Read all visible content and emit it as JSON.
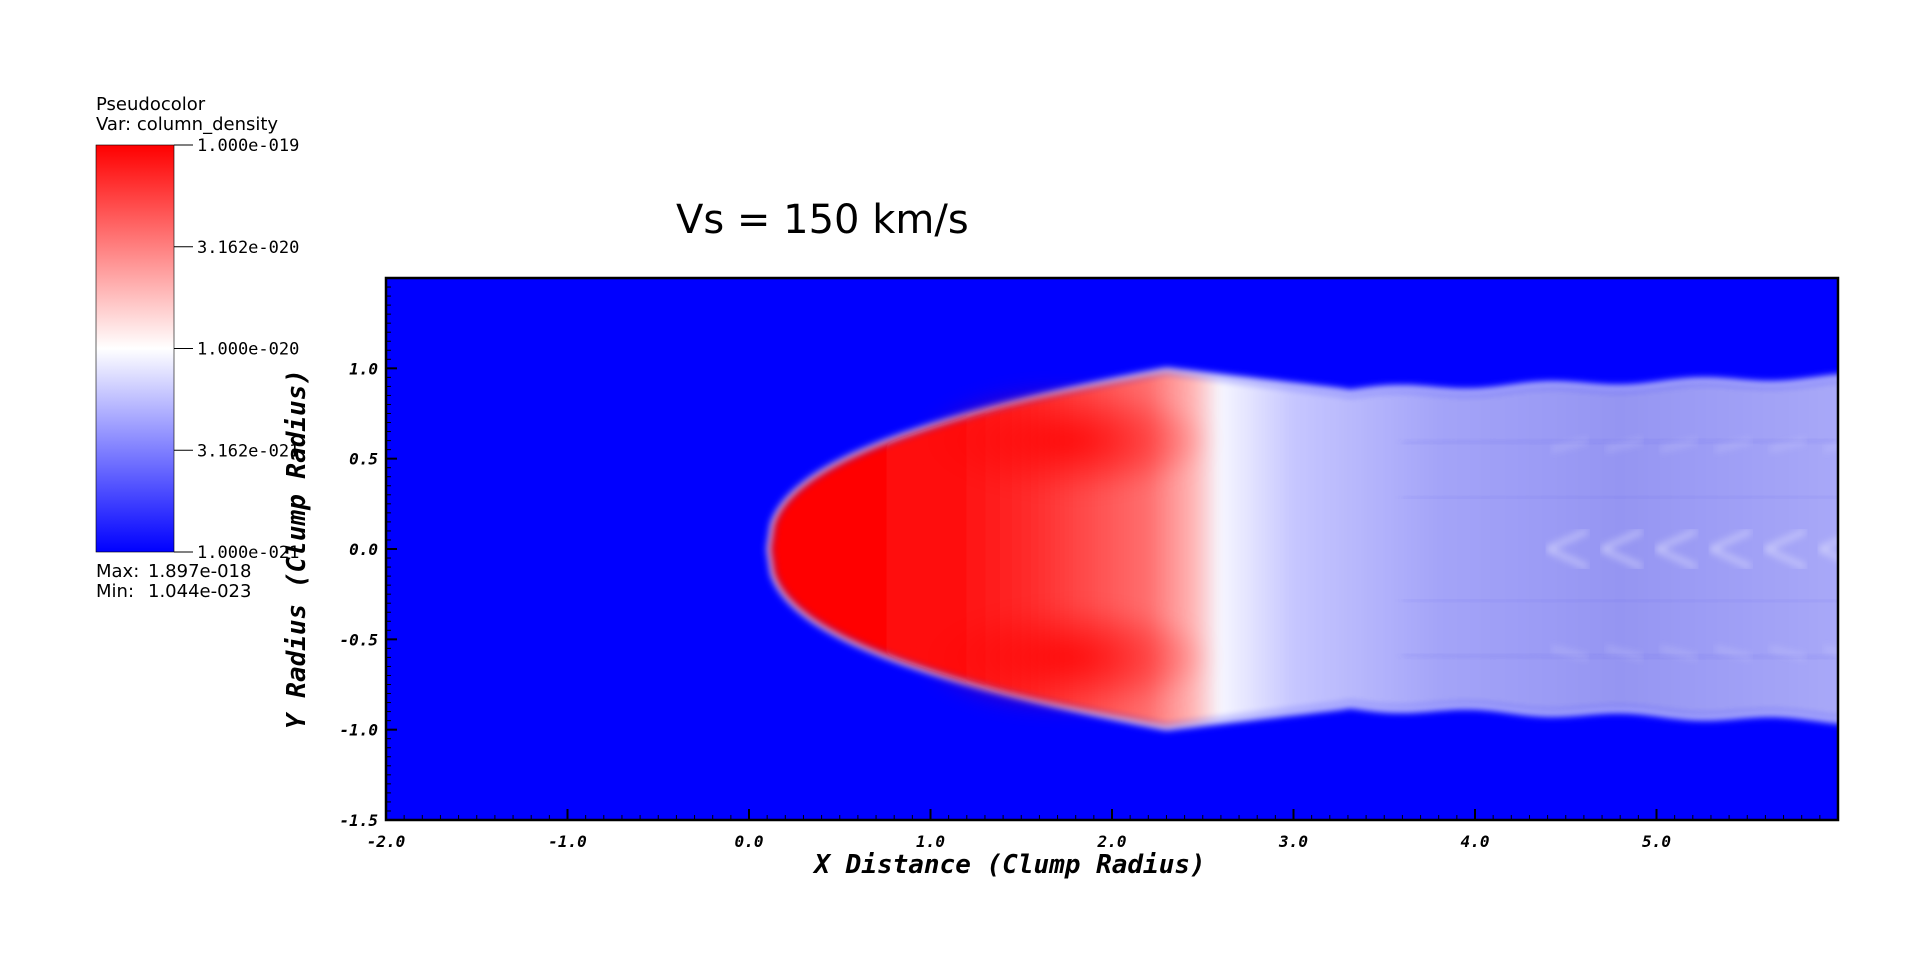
{
  "chart_data": {
    "type": "heatmap",
    "title": "Vs = 150 km/s",
    "xlabel": "X Distance (Clump Radius)",
    "ylabel": "Y Radius (Clump Radius)",
    "xlim": [
      -2.0,
      6.0
    ],
    "ylim": [
      -1.5,
      1.5
    ],
    "xticks": [
      "-2.0",
      "-1.0",
      "0.0",
      "1.0",
      "2.0",
      "3.0",
      "4.0",
      "5.0"
    ],
    "xtick_values": [
      -2,
      -1,
      0,
      1,
      2,
      3,
      4,
      5
    ],
    "yticks": [
      "-1.5",
      "-1.0",
      "-0.5",
      "0.0",
      "0.5",
      "1.0"
    ],
    "ytick_values": [
      -1.5,
      -1.0,
      -0.5,
      0.0,
      0.5,
      1.0
    ],
    "colors": {
      "low": "#0000ff",
      "mid": "#ffffff",
      "high": "#ff0000"
    },
    "legend": {
      "heading": "Pseudocolor",
      "variable": "Var: column_density",
      "labels": [
        "1.000e-019",
        "3.162e-020",
        "1.000e-020",
        "3.162e-021",
        "1.000e-021"
      ],
      "max_label": "Max:",
      "max_value": "1.897e-018",
      "min_label": "Min:",
      "min_value": "1.044e-023"
    },
    "features": {
      "bow_apex_x": 0.12,
      "dense_region_x": [
        0.12,
        2.55
      ],
      "tail_end_x": 6.0,
      "tail_halfwidth_at_end": 0.95,
      "max_halfwidth": 0.98
    }
  }
}
